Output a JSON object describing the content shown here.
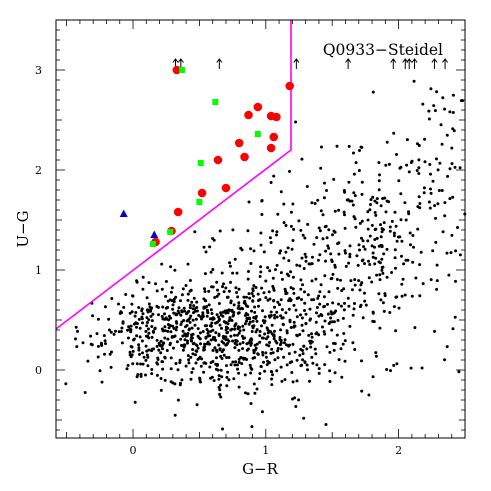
{
  "chart_data": {
    "type": "scatter",
    "title": "Q0933−Steidel",
    "xlabel": "G−R",
    "ylabel": "U−G",
    "xlim": [
      -0.58,
      2.5
    ],
    "ylim": [
      -0.68,
      3.5
    ],
    "xticks": [
      0,
      1,
      2
    ],
    "xtick_labels": [
      "0",
      "1",
      "2"
    ],
    "yticks": [
      0,
      1,
      2,
      3
    ],
    "ytick_labels": [
      "0",
      "1",
      "2",
      "3"
    ],
    "grid": false,
    "colors": {
      "field": "#000000",
      "red": "#ff0000",
      "green": "#00ff00",
      "blue": "#0000cc",
      "boundary": "#ff00ff"
    },
    "selection_boundary": [
      [
        -0.58,
        0.41
      ],
      [
        1.19,
        2.2
      ],
      [
        1.19,
        3.5
      ]
    ],
    "upper_limits_x": [
      0.32,
      0.36,
      0.65,
      1.23,
      1.62,
      1.96,
      2.05,
      2.08,
      2.12,
      2.27,
      2.35
    ],
    "upper_limits_y": 3.05,
    "field_random_seed": 933,
    "field_clouds": [
      {
        "n": 620,
        "cx": 0.45,
        "cy": 0.36,
        "sx": 0.42,
        "sy": 0.25
      },
      {
        "n": 380,
        "cx": 1.05,
        "cy": 0.5,
        "sx": 0.42,
        "sy": 0.4
      },
      {
        "n": 230,
        "cx": 1.85,
        "cy": 1.45,
        "sx": 0.33,
        "sy": 0.55
      },
      {
        "n": 110,
        "cx": 1.45,
        "cy": 1.3,
        "sx": 0.42,
        "sy": 0.6
      },
      {
        "n": 40,
        "cx": 2.3,
        "cy": 2.2,
        "sx": 0.15,
        "sy": 0.45
      }
    ],
    "series": [
      {
        "marker": "circle",
        "color": "#ff0000",
        "points": [
          [
            0.33,
            3.0
          ],
          [
            1.18,
            2.84
          ],
          [
            0.94,
            2.63
          ],
          [
            0.87,
            2.55
          ],
          [
            1.04,
            2.54
          ],
          [
            1.08,
            2.53
          ],
          [
            1.06,
            2.33
          ],
          [
            0.8,
            2.27
          ],
          [
            1.04,
            2.22
          ],
          [
            0.84,
            2.13
          ],
          [
            0.64,
            2.1
          ],
          [
            0.7,
            1.82
          ],
          [
            0.52,
            1.77
          ],
          [
            0.34,
            1.58
          ],
          [
            0.29,
            1.39
          ],
          [
            0.17,
            1.28
          ]
        ]
      },
      {
        "marker": "square",
        "color": "#00ff00",
        "points": [
          [
            0.37,
            3.0
          ],
          [
            0.62,
            2.68
          ],
          [
            0.94,
            2.36
          ],
          [
            0.51,
            2.07
          ],
          [
            0.5,
            1.68
          ],
          [
            0.28,
            1.38
          ],
          [
            0.15,
            1.26
          ]
        ]
      },
      {
        "marker": "triangle",
        "color": "#0000cc",
        "points": [
          [
            -0.07,
            1.56
          ],
          [
            0.16,
            1.35
          ]
        ]
      }
    ]
  }
}
